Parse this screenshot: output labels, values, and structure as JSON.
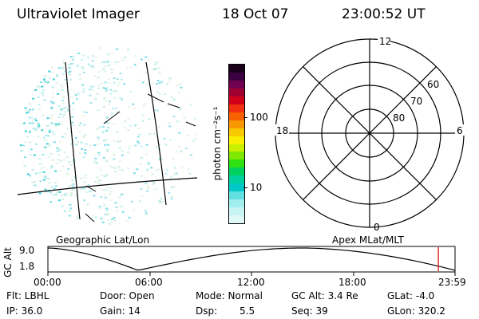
{
  "header": {
    "title": "Ultraviolet Imager",
    "date": "18 Oct 07",
    "time": "23:00:52 UT"
  },
  "colorbar": {
    "unit_label": "photon cm⁻²s⁻¹",
    "ticks": [
      "100",
      "10"
    ],
    "colors": [
      "#1a001a",
      "#3a0040",
      "#700050",
      "#a00030",
      "#d0001a",
      "#f03010",
      "#f86000",
      "#f89800",
      "#f8c800",
      "#f8f000",
      "#c8f000",
      "#80e800",
      "#30e010",
      "#00d060",
      "#00d0a0",
      "#00c8c8",
      "#60e0e0",
      "#a0eeee",
      "#c8f4f4",
      "#e0f8f8"
    ]
  },
  "polar": {
    "mlt_labels": {
      "top": "12",
      "left": "18",
      "right": "6",
      "bottom": "0"
    },
    "lat_labels": [
      "60",
      "70",
      "80"
    ]
  },
  "timeline": {
    "axis_label": "GC Alt",
    "y_ticks": [
      "9.0",
      "1.8"
    ],
    "left_label": "Geographic Lat/Lon",
    "right_label": "Apex MLat/MLT",
    "x_ticks": [
      "00:00",
      "06:00",
      "12:00",
      "18:00",
      "23:59"
    ],
    "marker_color": "#e00000"
  },
  "info": {
    "flt": "Flt: LBHL",
    "ip": "IP: 36.0",
    "door": "Door: Open",
    "gain": "Gain: 14",
    "mode": "Mode: Normal",
    "dsp_label": "Dsp:",
    "dsp_value": "5.5",
    "gc_alt": "GC Alt: 3.4 Re",
    "seq": "Seq: 39",
    "glat": "GLat: -4.0",
    "glon": "GLon: 320.2"
  }
}
